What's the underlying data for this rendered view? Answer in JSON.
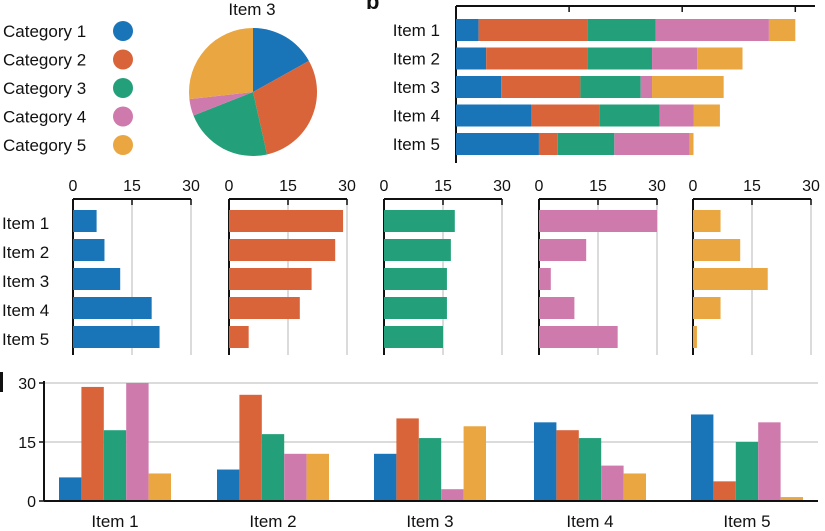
{
  "colors": [
    "#1a74b8",
    "#d9643a",
    "#23a079",
    "#cf7aad",
    "#eaa640"
  ],
  "legend": [
    "Category 1",
    "Category 2",
    "Category 3",
    "Category 4",
    "Category 5"
  ],
  "panel_label": "b",
  "chart_data": [
    {
      "type": "pie",
      "title": "Item 3",
      "categories": [
        "Category 1",
        "Category 2",
        "Category 3",
        "Category 4",
        "Category 5"
      ],
      "values": [
        12,
        21,
        16,
        3,
        19
      ]
    },
    {
      "type": "bar",
      "orientation": "horizontal",
      "stacked": true,
      "categories": [
        "Item 1",
        "Item 2",
        "Item 3",
        "Item 4",
        "Item 5"
      ],
      "series": [
        {
          "name": "Category 1",
          "values": [
            6,
            8,
            12,
            20,
            22
          ]
        },
        {
          "name": "Category 2",
          "values": [
            29,
            27,
            21,
            18,
            5
          ]
        },
        {
          "name": "Category 3",
          "values": [
            18,
            17,
            16,
            16,
            15
          ]
        },
        {
          "name": "Category 4",
          "values": [
            30,
            12,
            3,
            9,
            20
          ]
        },
        {
          "name": "Category 5",
          "values": [
            7,
            12,
            19,
            7,
            1
          ]
        }
      ]
    },
    {
      "type": "bar",
      "orientation": "horizontal",
      "small_multiples": true,
      "categories": [
        "Item 1",
        "Item 2",
        "Item 3",
        "Item 4",
        "Item 5"
      ],
      "xlim": [
        0,
        30
      ],
      "xticks": [
        "0",
        "15",
        "30"
      ],
      "series": [
        {
          "name": "Category 1",
          "values": [
            6,
            8,
            12,
            20,
            22
          ]
        },
        {
          "name": "Category 2",
          "values": [
            29,
            27,
            21,
            18,
            5
          ]
        },
        {
          "name": "Category 3",
          "values": [
            18,
            17,
            16,
            16,
            15
          ]
        },
        {
          "name": "Category 4",
          "values": [
            30,
            12,
            3,
            9,
            20
          ]
        },
        {
          "name": "Category 5",
          "values": [
            7,
            12,
            19,
            7,
            1
          ]
        }
      ]
    },
    {
      "type": "bar",
      "orientation": "vertical",
      "grouped": true,
      "categories": [
        "Item 1",
        "Item 2",
        "Item 3",
        "Item 4",
        "Item 5"
      ],
      "ylim": [
        0,
        30
      ],
      "yticks": [
        "0",
        "15",
        "30"
      ],
      "series": [
        {
          "name": "Category 1",
          "values": [
            6,
            8,
            12,
            20,
            22
          ]
        },
        {
          "name": "Category 2",
          "values": [
            29,
            27,
            21,
            18,
            5
          ]
        },
        {
          "name": "Category 3",
          "values": [
            18,
            17,
            16,
            16,
            15
          ]
        },
        {
          "name": "Category 4",
          "values": [
            30,
            12,
            3,
            9,
            20
          ]
        },
        {
          "name": "Category 5",
          "values": [
            7,
            12,
            19,
            7,
            1
          ]
        }
      ]
    }
  ]
}
